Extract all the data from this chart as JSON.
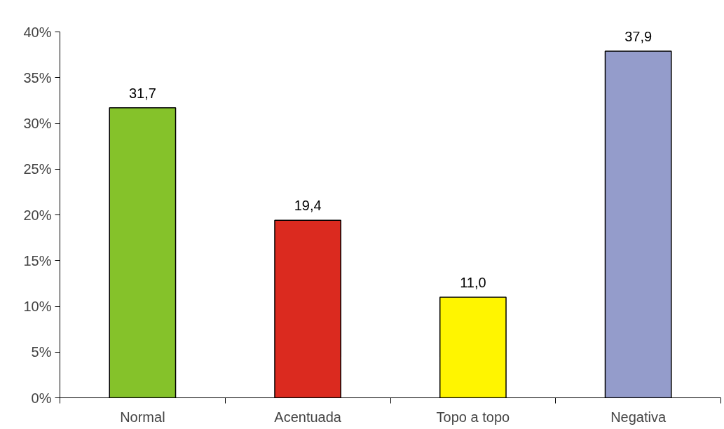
{
  "chart_data": {
    "type": "bar",
    "categories": [
      "Normal",
      "Acentuada",
      "Topo a topo",
      "Negativa"
    ],
    "values": [
      31.7,
      19.4,
      11.0,
      37.9
    ],
    "colors": [
      "#85c22a",
      "#db2a1f",
      "#fff500",
      "#949ccb"
    ],
    "value_labels": [
      "31,7",
      "19,4",
      "11,0",
      "37,9"
    ],
    "ylim": [
      0,
      40
    ],
    "yticks": [
      {
        "value": 0,
        "label": "0%"
      },
      {
        "value": 5,
        "label": "5%"
      },
      {
        "value": 10,
        "label": "10%"
      },
      {
        "value": 15,
        "label": "15%"
      },
      {
        "value": 20,
        "label": "20%"
      },
      {
        "value": 25,
        "label": "25%"
      },
      {
        "value": 30,
        "label": "30%"
      },
      {
        "value": 35,
        "label": "35%"
      },
      {
        "value": 40,
        "label": "40%"
      }
    ],
    "grid": false
  }
}
